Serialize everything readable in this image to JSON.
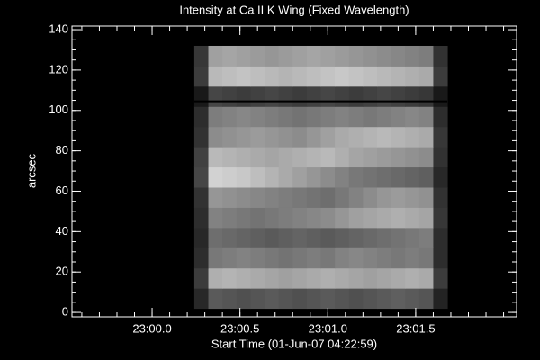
{
  "chart_data": {
    "type": "heatmap",
    "title": "Intensity at Ca II K Wing (Fixed Wavelength)",
    "x_label": "Start Time (01-Jun-07 04:22:59)",
    "y_label": "arcsec",
    "xlim": [
      -0.456,
      2.074
    ],
    "ylim": [
      -2.2,
      141.8
    ],
    "xticks": [
      {
        "value": 0,
        "label": "23:00.0"
      },
      {
        "value": 0.5,
        "label": "23:00.5"
      },
      {
        "value": 1,
        "label": "23:01.0"
      },
      {
        "value": 1.5,
        "label": "23:01.5"
      }
    ],
    "yticks": [
      0,
      20,
      40,
      60,
      80,
      100,
      120,
      140
    ],
    "minor_per_major": {
      "x": 5,
      "y": 4
    },
    "x_edges": [
      0.24,
      0.32,
      0.4,
      0.48,
      0.56,
      0.64,
      0.72,
      0.8,
      0.88,
      0.96,
      1.04,
      1.12,
      1.2,
      1.28,
      1.36,
      1.44,
      1.52,
      1.6,
      1.68
    ],
    "y_edges": [
      2,
      12,
      22,
      32,
      42,
      52,
      62,
      72,
      82,
      92,
      102,
      112,
      122,
      132
    ],
    "z": [
      [
        40,
        90,
        85,
        80,
        85,
        90,
        85,
        80,
        85,
        90,
        85,
        80,
        85,
        90,
        95,
        90,
        85,
        35
      ],
      [
        60,
        175,
        180,
        175,
        170,
        165,
        160,
        165,
        170,
        175,
        170,
        165,
        160,
        165,
        170,
        175,
        170,
        60
      ],
      [
        45,
        120,
        125,
        130,
        125,
        120,
        115,
        120,
        125,
        120,
        130,
        135,
        130,
        125,
        120,
        125,
        120,
        45
      ],
      [
        40,
        110,
        105,
        100,
        95,
        90,
        95,
        100,
        95,
        90,
        95,
        100,
        105,
        110,
        115,
        120,
        125,
        45
      ],
      [
        45,
        130,
        125,
        120,
        115,
        120,
        125,
        130,
        135,
        140,
        150,
        160,
        165,
        170,
        175,
        170,
        165,
        55
      ],
      [
        50,
        150,
        145,
        140,
        135,
        130,
        125,
        120,
        115,
        110,
        120,
        130,
        140,
        150,
        155,
        150,
        145,
        50
      ],
      [
        70,
        210,
        205,
        200,
        190,
        180,
        170,
        160,
        150,
        140,
        130,
        120,
        115,
        110,
        105,
        100,
        95,
        40
      ],
      [
        65,
        185,
        180,
        175,
        170,
        165,
        170,
        175,
        180,
        185,
        175,
        165,
        160,
        155,
        150,
        145,
        140,
        50
      ],
      [
        50,
        140,
        145,
        150,
        155,
        150,
        145,
        140,
        150,
        160,
        170,
        175,
        180,
        185,
        180,
        175,
        170,
        55
      ],
      [
        45,
        125,
        130,
        135,
        130,
        125,
        120,
        115,
        120,
        125,
        130,
        125,
        120,
        125,
        130,
        135,
        130,
        45
      ],
      [
        25,
        70,
        65,
        60,
        65,
        70,
        65,
        60,
        65,
        70,
        65,
        60,
        65,
        70,
        65,
        60,
        55,
        25
      ],
      [
        60,
        185,
        190,
        195,
        190,
        185,
        180,
        185,
        190,
        195,
        200,
        195,
        190,
        185,
        180,
        175,
        170,
        60
      ],
      [
        55,
        160,
        165,
        160,
        155,
        150,
        155,
        160,
        165,
        160,
        155,
        150,
        145,
        140,
        135,
        130,
        125,
        50
      ]
    ],
    "h_line": 104.5,
    "background": "#000000",
    "axis_color": "#ffffff"
  }
}
